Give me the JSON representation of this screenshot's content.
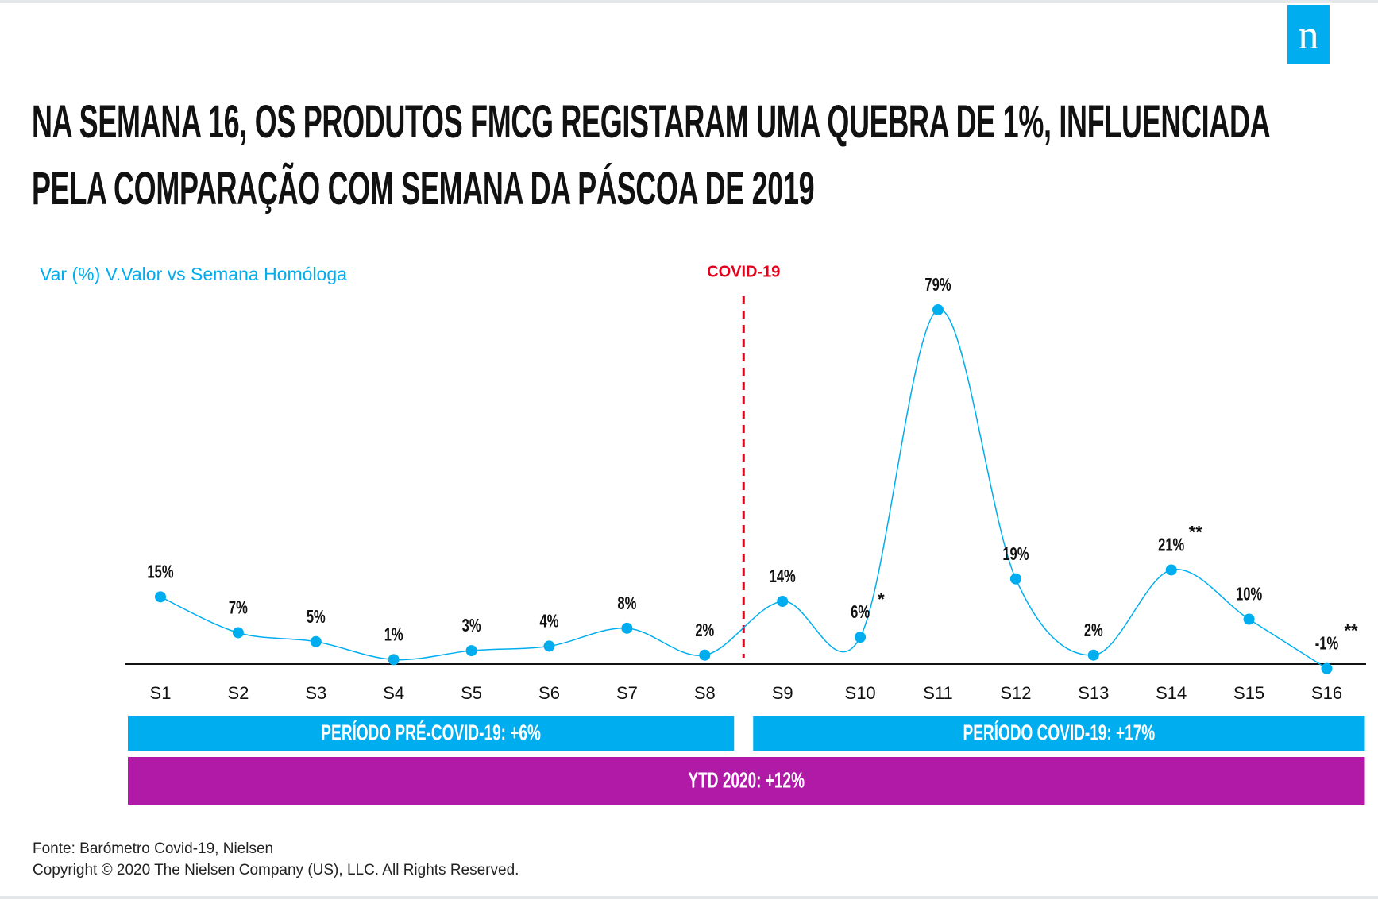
{
  "header": {
    "title": "NA SEMANA 16, OS PRODUTOS FMCG REGISTARAM UMA QUEBRA DE 1%, INFLUENCIADA PELA COMPARAÇÃO COM SEMANA DA PÁSCOA DE 2019",
    "logo": "n"
  },
  "chart_data": {
    "type": "line",
    "subtitle": "Var (%) V.Valor vs Semana Homóloga",
    "color": "#00aeef",
    "categories": [
      "S1",
      "S2",
      "S3",
      "S4",
      "S5",
      "S6",
      "S7",
      "S8",
      "S9",
      "S10",
      "S11",
      "S12",
      "S13",
      "S14",
      "S15",
      "S16"
    ],
    "values": [
      15,
      7,
      5,
      1,
      3,
      4,
      8,
      2,
      14,
      6,
      79,
      19,
      2,
      21,
      10,
      -1
    ],
    "value_labels": [
      "15%",
      "7%",
      "5%",
      "1%",
      "3%",
      "4%",
      "8%",
      "2%",
      "14%",
      "6%",
      "79%",
      "19%",
      "2%",
      "21%",
      "10%",
      "-1%"
    ],
    "annotations": [
      {
        "category": "S10",
        "text": "*"
      },
      {
        "category": "S14",
        "text": "**"
      },
      {
        "category": "S16",
        "text": "**"
      }
    ],
    "divider": {
      "label": "COVID-19",
      "between": [
        "S8",
        "S9"
      ],
      "color": "#e2001a"
    },
    "periods": [
      {
        "label": "PERÍODO PRÉ-COVID-19: +6%",
        "from": "S1",
        "to": "S8",
        "color": "#00aeef"
      },
      {
        "label": "PERÍODO COVID-19: +17%",
        "from": "S9",
        "to": "S16",
        "color": "#00aeef"
      },
      {
        "label": "YTD 2020: +12%",
        "from": "S1",
        "to": "S16",
        "color": "#b01aa7"
      }
    ]
  },
  "footer": {
    "source": "Fonte: Barómetro Covid-19, Nielsen",
    "copyright": "Copyright © 2020 The Nielsen Company (US), LLC. All Rights Reserved."
  }
}
